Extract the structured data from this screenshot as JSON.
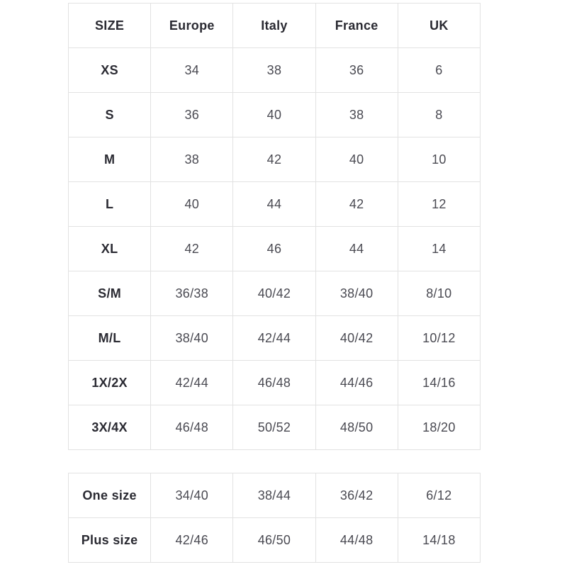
{
  "colors": {
    "background": "#ffffff",
    "border": "#e2e2e2",
    "header_text": "#2a2a32",
    "cell_text": "#4a4a52"
  },
  "chart_data": [
    {
      "type": "table",
      "title": "",
      "columns": [
        "SIZE",
        "Europe",
        "Italy",
        "France",
        "UK"
      ],
      "rows": [
        [
          "XS",
          "34",
          "38",
          "36",
          "6"
        ],
        [
          "S",
          "36",
          "40",
          "38",
          "8"
        ],
        [
          "M",
          "38",
          "42",
          "40",
          "10"
        ],
        [
          "L",
          "40",
          "44",
          "42",
          "12"
        ],
        [
          "XL",
          "42",
          "46",
          "44",
          "14"
        ],
        [
          "S/M",
          "36/38",
          "40/42",
          "38/40",
          "8/10"
        ],
        [
          "M/L",
          "38/40",
          "42/44",
          "40/42",
          "10/12"
        ],
        [
          "1X/2X",
          "42/44",
          "46/48",
          "44/46",
          "14/16"
        ],
        [
          "3X/4X",
          "46/48",
          "50/52",
          "48/50",
          "18/20"
        ]
      ],
      "layout": {
        "grid": true,
        "header_row": true,
        "bold_first_column": true
      }
    },
    {
      "type": "table",
      "title": "",
      "columns": [],
      "rows": [
        [
          "One size",
          "34/40",
          "38/44",
          "36/42",
          "6/12"
        ],
        [
          "Plus size",
          "42/46",
          "46/50",
          "44/48",
          "14/18"
        ]
      ],
      "layout": {
        "grid": true,
        "header_row": false,
        "bold_first_column": true
      }
    }
  ]
}
